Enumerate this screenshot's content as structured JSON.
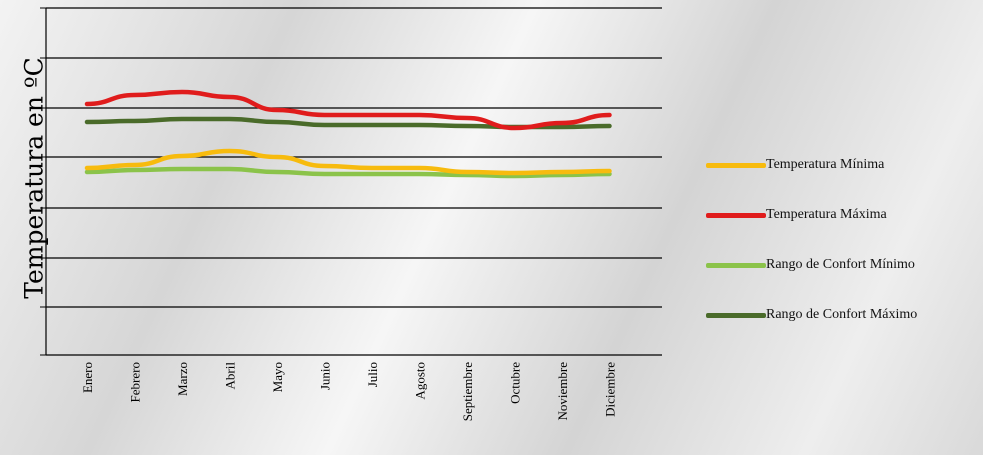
{
  "chart_data": {
    "type": "line",
    "ylabel": "Temperatura en ºC",
    "xlabel": "",
    "categories": [
      "Enero",
      "Febrero",
      "Marzo",
      "Abril",
      "Mayo",
      "Junio",
      "Julio",
      "Agosto",
      "Septiembre",
      "Octubre",
      "Noviembre",
      "Diciembre"
    ],
    "y_ticks_labeled": false,
    "grid": true,
    "legend_position": "right",
    "series": [
      {
        "name": "Temperatura Mínima",
        "color": "#f7bb0e",
        "values": [
          28.0,
          28.6,
          30.4,
          31.4,
          30.2,
          28.4,
          28.0,
          28.0,
          27.2,
          27.0,
          27.2,
          27.4
        ]
      },
      {
        "name": "Temperatura Máxima",
        "color": "#e01c1c",
        "values": [
          40.8,
          42.6,
          43.2,
          42.2,
          39.6,
          38.6,
          38.6,
          38.6,
          38.0,
          36.0,
          37.0,
          38.6
        ]
      },
      {
        "name": "Rango de Confort Mínimo",
        "color": "#8bc34a",
        "values": [
          27.2,
          27.6,
          27.8,
          27.8,
          27.2,
          26.8,
          26.8,
          26.8,
          26.6,
          26.4,
          26.6,
          26.8
        ]
      },
      {
        "name": "Rango de Confort Máximo",
        "color": "#4a6b2a",
        "values": [
          37.2,
          37.4,
          37.8,
          37.8,
          37.2,
          36.6,
          36.6,
          36.6,
          36.4,
          36.2,
          36.2,
          36.4
        ]
      }
    ]
  }
}
